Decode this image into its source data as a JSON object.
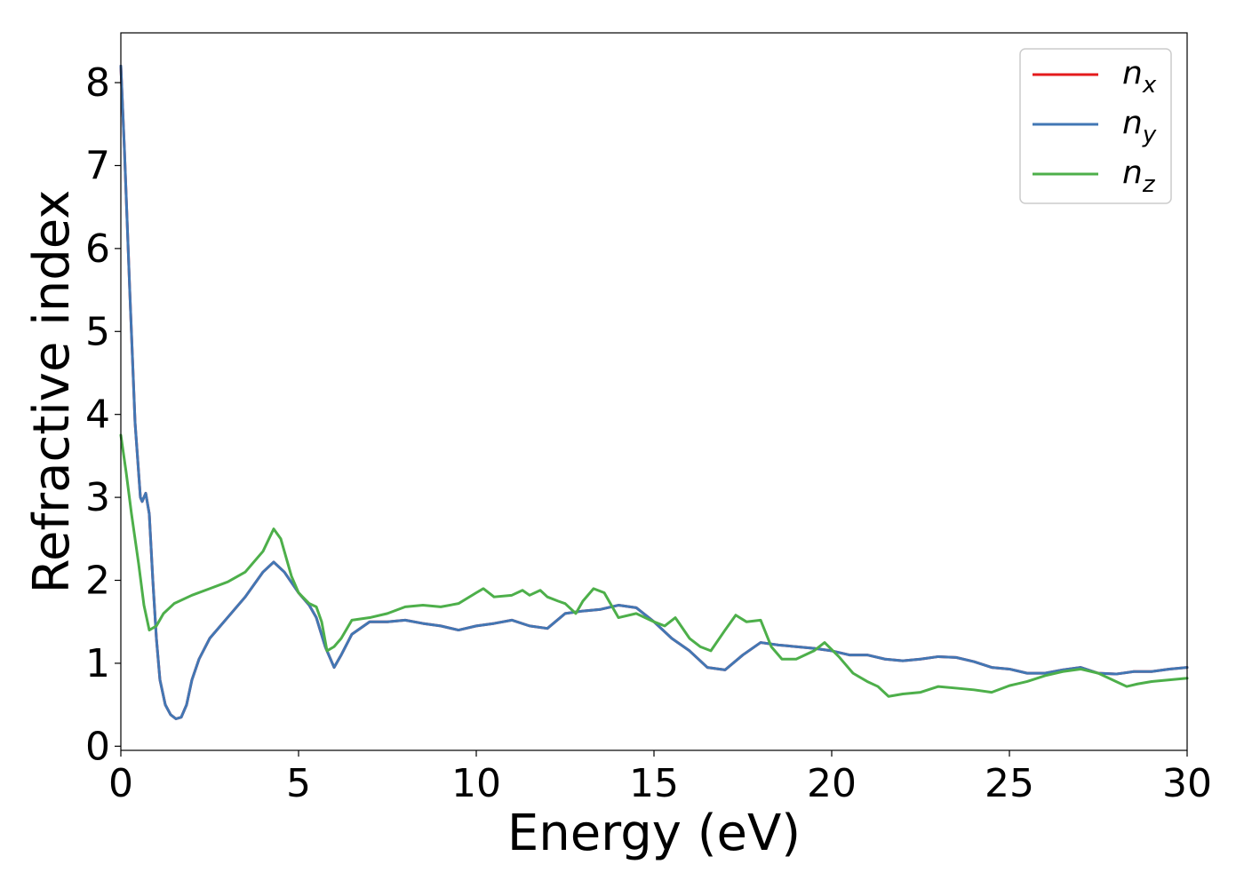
{
  "chart_data": {
    "type": "line",
    "title": "",
    "xlabel": "Energy (eV)",
    "ylabel": "Refractive index",
    "xlim": [
      0,
      30
    ],
    "ylim": [
      -0.05,
      8.6
    ],
    "xticks": [
      0,
      5,
      10,
      15,
      20,
      25,
      30
    ],
    "yticks": [
      0,
      1,
      2,
      3,
      4,
      5,
      6,
      7,
      8
    ],
    "xtick_labels": [
      "0",
      "5",
      "10",
      "15",
      "20",
      "25",
      "30"
    ],
    "ytick_labels": [
      "0",
      "1",
      "2",
      "3",
      "4",
      "5",
      "6",
      "7",
      "8"
    ],
    "grid": false,
    "legend_position": "top-right",
    "series": [
      {
        "name": "n_x",
        "label_base": "n",
        "label_sub": "x",
        "color": "#e41a1c",
        "x": [
          0,
          0.1,
          0.25,
          0.4,
          0.55,
          0.6,
          0.7,
          0.8,
          0.9,
          1.0,
          1.1,
          1.25,
          1.4,
          1.55,
          1.7,
          1.85,
          2.0,
          2.2,
          2.5,
          3.0,
          3.5,
          4.0,
          4.3,
          4.6,
          5.0,
          5.3,
          5.5,
          5.75,
          6.0,
          6.2,
          6.5,
          7.0,
          7.5,
          8.0,
          8.5,
          9.0,
          9.5,
          10.0,
          10.5,
          11.0,
          11.5,
          12.0,
          12.5,
          13.0,
          13.5,
          14.0,
          14.5,
          15.0,
          15.5,
          16.0,
          16.5,
          17.0,
          17.5,
          18.0,
          18.5,
          19.0,
          19.5,
          20.0,
          20.5,
          21.0,
          21.5,
          22.0,
          22.5,
          23.0,
          23.5,
          24.0,
          24.5,
          25.0,
          25.5,
          26.0,
          26.5,
          27.0,
          27.5,
          28.0,
          28.5,
          29.0,
          29.5,
          30.0
        ],
        "y": [
          8.2,
          7.2,
          5.5,
          3.9,
          3.0,
          2.95,
          3.05,
          2.8,
          2.0,
          1.3,
          0.8,
          0.5,
          0.38,
          0.33,
          0.35,
          0.5,
          0.8,
          1.05,
          1.3,
          1.55,
          1.8,
          2.1,
          2.22,
          2.1,
          1.85,
          1.7,
          1.55,
          1.2,
          0.95,
          1.1,
          1.35,
          1.5,
          1.5,
          1.52,
          1.48,
          1.45,
          1.4,
          1.45,
          1.48,
          1.52,
          1.45,
          1.42,
          1.6,
          1.63,
          1.65,
          1.7,
          1.67,
          1.5,
          1.3,
          1.15,
          0.95,
          0.92,
          1.1,
          1.25,
          1.22,
          1.2,
          1.18,
          1.15,
          1.1,
          1.1,
          1.05,
          1.03,
          1.05,
          1.08,
          1.07,
          1.02,
          0.95,
          0.93,
          0.88,
          0.88,
          0.92,
          0.95,
          0.88,
          0.87,
          0.9,
          0.9,
          0.93,
          0.95
        ]
      },
      {
        "name": "n_y",
        "label_base": "n",
        "label_sub": "y",
        "color": "#4277b4",
        "x": [
          0,
          0.1,
          0.25,
          0.4,
          0.55,
          0.6,
          0.7,
          0.8,
          0.9,
          1.0,
          1.1,
          1.25,
          1.4,
          1.55,
          1.7,
          1.85,
          2.0,
          2.2,
          2.5,
          3.0,
          3.5,
          4.0,
          4.3,
          4.6,
          5.0,
          5.3,
          5.5,
          5.75,
          6.0,
          6.2,
          6.5,
          7.0,
          7.5,
          8.0,
          8.5,
          9.0,
          9.5,
          10.0,
          10.5,
          11.0,
          11.5,
          12.0,
          12.5,
          13.0,
          13.5,
          14.0,
          14.5,
          15.0,
          15.5,
          16.0,
          16.5,
          17.0,
          17.5,
          18.0,
          18.5,
          19.0,
          19.5,
          20.0,
          20.5,
          21.0,
          21.5,
          22.0,
          22.5,
          23.0,
          23.5,
          24.0,
          24.5,
          25.0,
          25.5,
          26.0,
          26.5,
          27.0,
          27.5,
          28.0,
          28.5,
          29.0,
          29.5,
          30.0
        ],
        "y": [
          8.2,
          7.2,
          5.5,
          3.9,
          3.0,
          2.95,
          3.05,
          2.8,
          2.0,
          1.3,
          0.8,
          0.5,
          0.38,
          0.33,
          0.35,
          0.5,
          0.8,
          1.05,
          1.3,
          1.55,
          1.8,
          2.1,
          2.22,
          2.1,
          1.85,
          1.7,
          1.55,
          1.2,
          0.95,
          1.1,
          1.35,
          1.5,
          1.5,
          1.52,
          1.48,
          1.45,
          1.4,
          1.45,
          1.48,
          1.52,
          1.45,
          1.42,
          1.6,
          1.63,
          1.65,
          1.7,
          1.67,
          1.5,
          1.3,
          1.15,
          0.95,
          0.92,
          1.1,
          1.25,
          1.22,
          1.2,
          1.18,
          1.15,
          1.1,
          1.1,
          1.05,
          1.03,
          1.05,
          1.08,
          1.07,
          1.02,
          0.95,
          0.93,
          0.88,
          0.88,
          0.92,
          0.95,
          0.88,
          0.87,
          0.9,
          0.9,
          0.93,
          0.95
        ]
      },
      {
        "name": "n_z",
        "label_base": "n",
        "label_sub": "z",
        "color": "#4daf4a",
        "x": [
          0,
          0.15,
          0.3,
          0.5,
          0.65,
          0.8,
          1.0,
          1.2,
          1.5,
          2.0,
          2.5,
          3.0,
          3.5,
          4.0,
          4.3,
          4.5,
          4.8,
          5.0,
          5.3,
          5.5,
          5.65,
          5.8,
          6.0,
          6.2,
          6.5,
          7.0,
          7.5,
          8.0,
          8.5,
          9.0,
          9.5,
          10.0,
          10.2,
          10.5,
          11.0,
          11.3,
          11.5,
          11.8,
          12.0,
          12.3,
          12.5,
          12.8,
          13.0,
          13.3,
          13.6,
          14.0,
          14.5,
          15.0,
          15.3,
          15.6,
          16.0,
          16.3,
          16.6,
          17.0,
          17.3,
          17.6,
          18.0,
          18.3,
          18.6,
          19.0,
          19.5,
          19.8,
          20.2,
          20.6,
          21.0,
          21.3,
          21.6,
          22.0,
          22.5,
          23.0,
          23.5,
          24.0,
          24.5,
          25.0,
          25.5,
          26.0,
          26.5,
          27.0,
          27.5,
          28.0,
          28.3,
          28.6,
          29.0,
          29.5,
          30.0
        ],
        "y": [
          3.75,
          3.3,
          2.8,
          2.2,
          1.7,
          1.4,
          1.45,
          1.6,
          1.72,
          1.82,
          1.9,
          1.98,
          2.1,
          2.35,
          2.62,
          2.5,
          2.05,
          1.85,
          1.72,
          1.68,
          1.5,
          1.15,
          1.2,
          1.3,
          1.52,
          1.55,
          1.6,
          1.68,
          1.7,
          1.68,
          1.72,
          1.85,
          1.9,
          1.8,
          1.82,
          1.88,
          1.82,
          1.88,
          1.8,
          1.75,
          1.72,
          1.6,
          1.75,
          1.9,
          1.85,
          1.55,
          1.6,
          1.5,
          1.45,
          1.55,
          1.3,
          1.2,
          1.15,
          1.4,
          1.58,
          1.5,
          1.52,
          1.2,
          1.05,
          1.05,
          1.15,
          1.25,
          1.08,
          0.88,
          0.78,
          0.72,
          0.6,
          0.63,
          0.65,
          0.72,
          0.7,
          0.68,
          0.65,
          0.73,
          0.78,
          0.85,
          0.9,
          0.93,
          0.88,
          0.78,
          0.72,
          0.75,
          0.78,
          0.8,
          0.82
        ]
      }
    ]
  }
}
